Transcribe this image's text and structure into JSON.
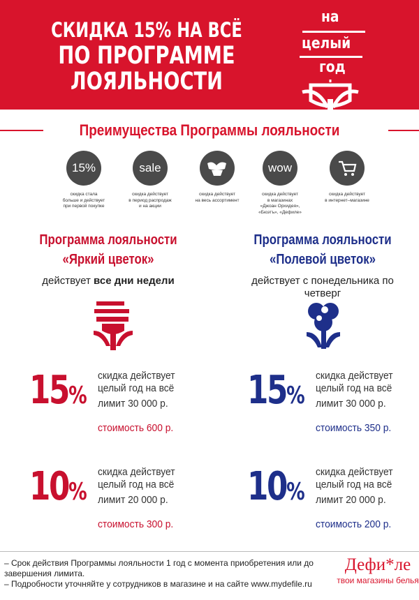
{
  "header": {
    "line1": "СКИДКА 15% НА ВСЁ",
    "line2": "ПО ПРОГРАММЕ",
    "line3": "ЛОЯЛЬНОСТИ",
    "badge": [
      "на",
      "целый",
      "год"
    ]
  },
  "advantages": {
    "title": "Преимущества Программы лояльности",
    "items": [
      {
        "icon": "percent-icon",
        "glyph": "15%",
        "text": "скидка стала\nбольше и действует\nпри первой покупке"
      },
      {
        "icon": "sale-icon",
        "glyph": "sale",
        "text": "скидка действует\nв период распродаж\nи на акции"
      },
      {
        "icon": "lingerie-icon",
        "glyph": "",
        "text": "скидка действует\nна весь ассортимент"
      },
      {
        "icon": "wow-icon",
        "glyph": "wow",
        "text": "скидка действует\nв магазинах\n«Джоан Орхидея»,\n«Бюэтъ», «Дефиле»"
      },
      {
        "icon": "cart-icon",
        "glyph": "",
        "text": "скидка действует\nв интернет–магазине"
      }
    ]
  },
  "programs": [
    {
      "name1": "Программа лояльности",
      "name2": "«Яркий цветок»",
      "schedule_prefix": "действует",
      "schedule_bold": "все дни недели",
      "color": "#c8102e",
      "tiers": [
        {
          "pct": "15",
          "sign": "%",
          "desc": "скидка действует\nцелый год на всё",
          "limit": "лимит 30 000 р.",
          "cost": "стоимость 600 р."
        },
        {
          "pct": "10",
          "sign": "%",
          "desc": "скидка действует\nцелый год на всё",
          "limit": "лимит 20 000 р.",
          "cost": "стоимость 300 р."
        }
      ]
    },
    {
      "name1": "Программа лояльности",
      "name2": "«Полевой цветок»",
      "schedule_prefix": "действует с понедельника по четверг",
      "schedule_bold": "",
      "color": "#1e2f8a",
      "tiers": [
        {
          "pct": "15",
          "sign": "%",
          "desc": "скидка действует\nцелый год на всё",
          "limit": "лимит 30 000 р.",
          "cost": "стоимость 350 р."
        },
        {
          "pct": "10",
          "sign": "%",
          "desc": "скидка действует\nцелый год на всё",
          "limit": "лимит 20 000 р.",
          "cost": "стоимость 200 р."
        }
      ]
    }
  ],
  "footer": {
    "notes": [
      "– Срок действия Программы лояльности 1 год с момента приобретения или до\n   завершения лимита.",
      "– Подробности уточняйте у сотрудников в магазине и на сайте www.mydefile.ru"
    ],
    "brand_name": "Дефи*ле",
    "brand_tagline": "твои магазины белья"
  },
  "colors": {
    "brand_red": "#d8142c",
    "program_red": "#c8102e",
    "program_blue": "#1e2f8a",
    "icon_gray": "#4a4a4a"
  }
}
